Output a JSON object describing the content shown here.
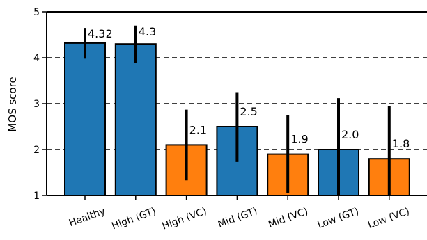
{
  "chart_data": {
    "type": "bar",
    "ylabel": "MOS score",
    "xlabel": "",
    "ylim": [
      1,
      5
    ],
    "yticks": [
      1,
      2,
      3,
      4,
      5
    ],
    "grid": "horizontal-dashed",
    "categories": [
      "Healthy",
      "High (GT)",
      "High (VC)",
      "Mid (GT)",
      "Mid (VC)",
      "Low (GT)",
      "Low (VC)"
    ],
    "values": [
      4.32,
      4.3,
      2.1,
      2.5,
      1.9,
      2.0,
      1.8
    ],
    "data_labels": [
      "4.32",
      "4.3",
      "2.1",
      "2.5",
      "1.9",
      "2.0",
      "1.8"
    ],
    "error_low": [
      3.98,
      3.88,
      1.33,
      1.73,
      1.05,
      0.9,
      0.7
    ],
    "error_high": [
      4.65,
      4.7,
      2.87,
      3.25,
      2.75,
      3.12,
      2.94
    ],
    "bar_colors": [
      "#1f77b4",
      "#1f77b4",
      "#ff7f0e",
      "#1f77b4",
      "#ff7f0e",
      "#1f77b4",
      "#ff7f0e"
    ]
  }
}
